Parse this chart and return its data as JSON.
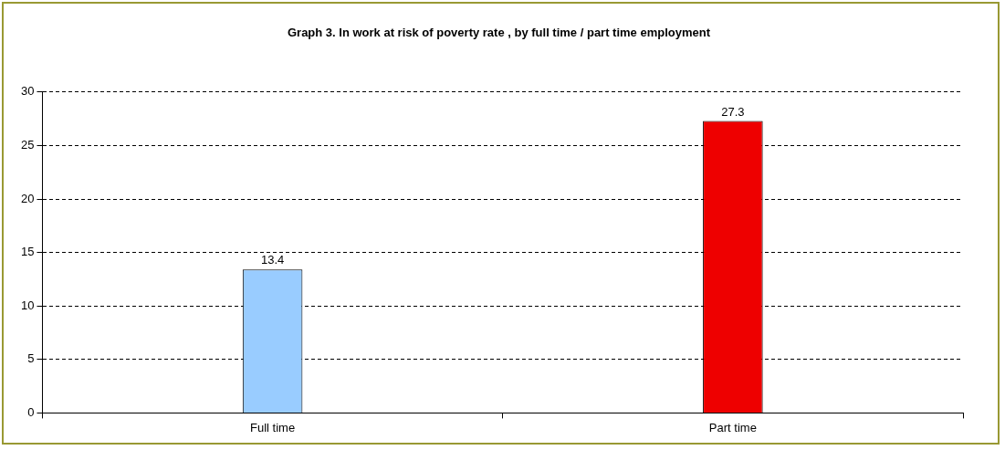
{
  "chart_data": {
    "type": "bar",
    "title": "Graph 3. In work at risk of poverty rate , by full time / part time employment",
    "categories": [
      "Full time",
      "Part time"
    ],
    "values": [
      13.4,
      27.3
    ],
    "colors": [
      "#99ccff",
      "#ee0000"
    ],
    "ylim": [
      0,
      30
    ],
    "yticks": [
      0,
      5,
      10,
      15,
      20,
      25,
      30
    ],
    "grid": "y",
    "legend": false,
    "data_labels": true
  }
}
